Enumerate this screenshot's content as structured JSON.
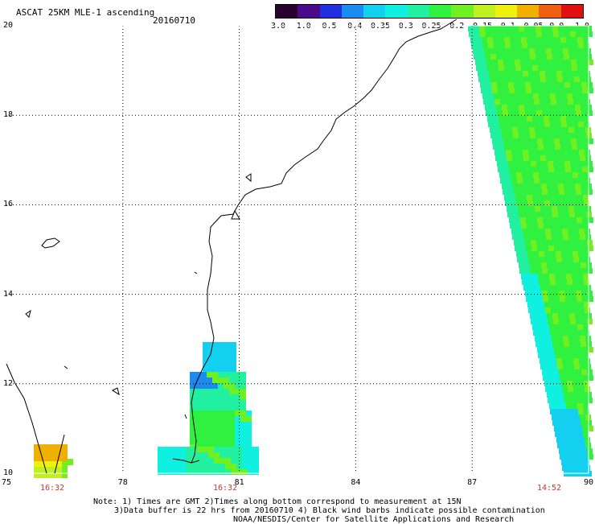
{
  "header": {
    "title": "ASCAT 25KM MLE-1 ascending",
    "date": "20160710"
  },
  "colorbar": {
    "colors": [
      "#2a0030",
      "#4a0a8a",
      "#1f30e0",
      "#1a8cf0",
      "#14d0f0",
      "#10f0e0",
      "#20f0a0",
      "#30f040",
      "#70f020",
      "#c0f020",
      "#f0f010",
      "#f0b000",
      "#f06010",
      "#e01010"
    ],
    "labels": [
      "-3.0",
      "-1.0",
      "-0.5",
      "-0.4",
      "-0.35",
      "-0.3",
      "-0.25",
      "-0.2",
      "-0.15",
      "-0.1",
      "-0.05",
      "0.0",
      "1.0"
    ]
  },
  "axes": {
    "x_labels": [
      "75",
      "78",
      "81",
      "84",
      "87",
      "90"
    ],
    "y_labels": [
      "20",
      "18",
      "16",
      "14",
      "12",
      "10"
    ],
    "lon_range": [
      75,
      90
    ],
    "lat_range": [
      10,
      20
    ]
  },
  "times": [
    "16:32",
    "16:32",
    "14:52"
  ],
  "notes": {
    "line1": "Note: 1) Times are GMT 2)Times along bottom correspond to measurement at 15N",
    "line2": "3)Data buffer is 22 hrs from 20160710 4) Black wind barbs indicate possible contamination",
    "line3": "NOAA/NESDIS/Center for Satellite Applications and Research"
  }
}
